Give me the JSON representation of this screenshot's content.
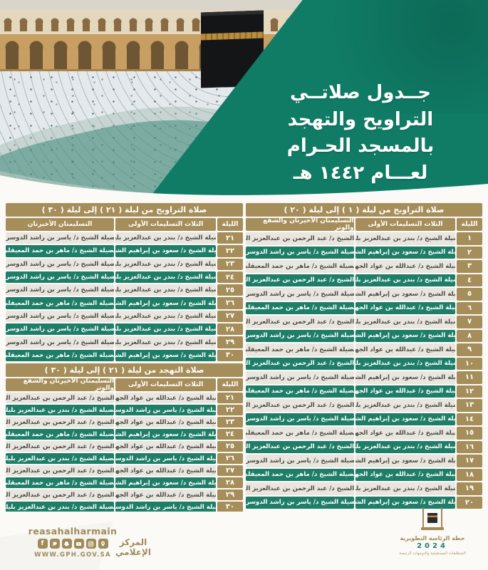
{
  "hero": {
    "title_lines": [
      "جــدول صلاتــي",
      "التراويح والتهجد",
      "بالمسجد الحـرام",
      "لعـــام ١٤٤٢ هـ"
    ]
  },
  "tables": {
    "taraweeh_1_20": {
      "title": "صلاة التراويح من ليلة ( ١ ) إلى ليلة ( ٢٠ )",
      "columns": [
        "الليلة",
        "الثلاث التسليمات الأولى",
        "التسليمتان الأخيرتان والشفع والوتر"
      ],
      "rows": [
        {
          "night": "١",
          "first": "فضيلة الشيخ د/ بندر بن عبدالعزيز بليلة",
          "second": "معالي الشيخ د/ عبد الرحمن بن عبدالعزيز السديس"
        },
        {
          "night": "٢",
          "first": "فضيلة الشيخ د/ سعود بن إبراهيم الشريم",
          "second": "فضيلة الشيخ د/ ياسر بن راشد الدوسري"
        },
        {
          "night": "٣",
          "first": "فضيلة الشيخ د/ عبدالله بن عواد الجهني",
          "second": "فضيلة الشيخ د/ ماهر بن حمد المعيقلي"
        },
        {
          "night": "٤",
          "first": "فضيلة الشيخ د/ بندر بن عبدالعزيز بليلة",
          "second": "معالي الشيخ د/ عبد الرحمن بن عبدالعزيز السديس"
        },
        {
          "night": "٥",
          "first": "فضيلة الشيخ د/ سعود بن إبراهيم الشريم",
          "second": "فضيلة الشيخ د/ ياسر بن راشد الدوسري"
        },
        {
          "night": "٦",
          "first": "فضيلة الشيخ د/ عبدالله بن عواد الجهني",
          "second": "فضيلة الشيخ د/ ماهر بن حمد المعيقلي"
        },
        {
          "night": "٧",
          "first": "فضيلة الشيخ د/ بندر بن عبدالعزيز بليلة",
          "second": "معالي الشيخ د/ عبد الرحمن بن عبدالعزيز السديس"
        },
        {
          "night": "٨",
          "first": "فضيلة الشيخ د/ سعود بن إبراهيم الشريم",
          "second": "فضيلة الشيخ د/ ياسر بن راشد الدوسري"
        },
        {
          "night": "٩",
          "first": "فضيلة الشيخ د/ عبدالله بن عواد الجهني",
          "second": "فضيلة الشيخ د/ ماهر بن حمد المعيقلي"
        },
        {
          "night": "١٠",
          "first": "فضيلة الشيخ د/ بندر بن عبدالعزيز بليلة",
          "second": "معالي الشيخ د/ عبد الرحمن بن عبدالعزيز السديس"
        },
        {
          "night": "١١",
          "first": "فضيلة الشيخ د/ سعود بن إبراهيم الشريم",
          "second": "فضيلة الشيخ د/ ياسر بن راشد الدوسري"
        },
        {
          "night": "١٢",
          "first": "فضيلة الشيخ د/ عبدالله بن عواد الجهني",
          "second": "فضيلة الشيخ د/ ماهر بن حمد المعيقلي"
        },
        {
          "night": "١٣",
          "first": "فضيلة الشيخ د/ بندر بن عبدالعزيز بليلة",
          "second": "معالي الشيخ د/ عبد الرحمن بن عبدالعزيز السديس"
        },
        {
          "night": "١٤",
          "first": "فضيلة الشيخ د/ سعود بن إبراهيم الشريم",
          "second": "فضيلة الشيخ د/ ياسر بن راشد الدوسري"
        },
        {
          "night": "١٥",
          "first": "فضيلة الشيخ د/ عبدالله بن عواد الجهني",
          "second": "فضيلة الشيخ د/ ماهر بن حمد المعيقلي"
        },
        {
          "night": "١٦",
          "first": "فضيلة الشيخ د/ بندر بن عبدالعزيز بليلة",
          "second": "معالي الشيخ د/ عبد الرحمن بن عبدالعزيز السديس"
        },
        {
          "night": "١٧",
          "first": "فضيلة الشيخ د/ سعود بن إبراهيم الشريم",
          "second": "فضيلة الشيخ د/ ياسر بن راشد الدوسري"
        },
        {
          "night": "١٨",
          "first": "فضيلة الشيخ د/ عبدالله بن عواد الجهني",
          "second": "فضيلة الشيخ د/ ماهر بن حمد المعيقلي"
        },
        {
          "night": "١٩",
          "first": "فضيلة الشيخ د/ بندر بن عبدالعزيز بليلة",
          "second": "معالي الشيخ د/ عبد الرحمن بن عبدالعزيز السديس"
        },
        {
          "night": "٢٠",
          "first": "فضيلة الشيخ د/ سعود بن إبراهيم الشريم",
          "second": "فضيلة الشيخ د/ ياسر بن راشد الدوسري"
        }
      ]
    },
    "taraweeh_21_30": {
      "title": "صلاة التراويح من ليلة ( ٢١ ) إلى ليلة ( ٣٠ )",
      "columns": [
        "الليلة",
        "الثلاث التسليمات الأولى",
        "التسليمتان الأخيرتان"
      ],
      "rows": [
        {
          "night": "٢١",
          "first": "فضيلة الشيخ د/ بندر بن عبدالعزيز بليلة",
          "second": "فضيلة الشيخ د/ ياسر بن راشد الدوسري"
        },
        {
          "night": "٢٢",
          "first": "فضيلة الشيخ د/ سعود بن إبراهيم الشريم",
          "second": "فضيلة الشيخ د/ ماهر بن حمد المعيقلي"
        },
        {
          "night": "٢٣",
          "first": "فضيلة الشيخ د/ بندر بن عبدالعزيز بليلة",
          "second": "فضيلة الشيخ د/ ياسر بن راشد الدوسري"
        },
        {
          "night": "٢٤",
          "first": "فضيلة الشيخ د/ بندر بن عبدالعزيز بليلة",
          "second": "فضيلة الشيخ د/ ياسر بن راشد الدوسري"
        },
        {
          "night": "٢٥",
          "first": "فضيلة الشيخ د/ بندر بن عبدالعزيز بليلة",
          "second": "فضيلة الشيخ د/ ياسر بن راشد الدوسري"
        },
        {
          "night": "٢٦",
          "first": "فضيلة الشيخ د/ سعود بن إبراهيم الشريم",
          "second": "فضيلة الشيخ د/ ماهر بن حمد المعيقلي"
        },
        {
          "night": "٢٧",
          "first": "فضيلة الشيخ د/ بندر بن عبدالعزيز بليلة",
          "second": "فضيلة الشيخ د/ ياسر بن راشد الدوسري"
        },
        {
          "night": "٢٨",
          "first": "فضيلة الشيخ د/ بندر بن عبدالعزيز بليلة",
          "second": "فضيلة الشيخ د/ ياسر بن راشد الدوسري"
        },
        {
          "night": "٢٩",
          "first": "فضيلة الشيخ د/ بندر بن عبدالعزيز بليلة",
          "second": "فضيلة الشيخ د/ ياسر بن راشد الدوسري"
        },
        {
          "night": "٣٠",
          "first": "فضيلة الشيخ د/ سعود بن إبراهيم الشريم",
          "second": "فضيلة الشيخ د/ ماهر بن حمد المعيقلي"
        }
      ]
    },
    "tahajjud_21_30": {
      "title": "صلاة التهجد من ليلة ( ٢١ ) إلى ليلة ( ٣٠ )",
      "columns": [
        "الليلة",
        "الثلاث التسليمات الأولى",
        "التسليمتان الأخيرتان والشفع والوتر"
      ],
      "rows": [
        {
          "night": "٢١",
          "first": "فضيلة الشيخ د/ عبدالله بن عواد الجهني",
          "second": "معالي الشيخ د/ عبد الرحمن بن عبدالعزيز السديس"
        },
        {
          "night": "٢٢",
          "first": "فضيلة الشيخ د/ ياسر بن راشد الدوسري",
          "second": "فضيلة الشيخ د/ بندر بن عبدالعزيز بليلة"
        },
        {
          "night": "٢٣",
          "first": "فضيلة الشيخ د/ عبدالله بن عواد الجهني",
          "second": "معالي الشيخ د/ عبد الرحمن بن عبدالعزيز السديس"
        },
        {
          "night": "٢٤",
          "first": "فضيلة الشيخ د/ سعود بن إبراهيم الشريم",
          "second": "فضيلة الشيخ د/ ماهر بن حمد المعيقلي"
        },
        {
          "night": "٢٥",
          "first": "فضيلة الشيخ د/ عبدالله بن عواد الجهني",
          "second": "معالي الشيخ د/ عبد الرحمن بن عبدالعزيز السديس"
        },
        {
          "night": "٢٦",
          "first": "فضيلة الشيخ د/ ياسر بن راشد الدوسري",
          "second": "فضيلة الشيخ د/ بندر بن عبدالعزيز بليلة"
        },
        {
          "night": "٢٧",
          "first": "فضيلة الشيخ د/ عبدالله بن عواد الجهني",
          "second": "معالي الشيخ د/ عبد الرحمن بن عبدالعزيز السديس"
        },
        {
          "night": "٢٨",
          "first": "فضيلة الشيخ د/ سعود بن إبراهيم الشريم",
          "second": "فضيلة الشيخ د/ ماهر بن حمد المعيقلي"
        },
        {
          "night": "٢٩",
          "first": "فضيلة الشيخ د/ عبدالله بن عواد الجهني",
          "second": "معالي الشيخ د/ عبد الرحمن بن عبدالعزيز السديس"
        },
        {
          "night": "٣٠",
          "first": "فضيلة الشيخ د/ ياسر بن راشد الدوسري",
          "second": "فضيلة الشيخ د/ بندر بن عبدالعزيز بليلة"
        }
      ]
    }
  },
  "footer": {
    "media_center": "المركز الإعلامي",
    "social_handle": "reasahalharmain",
    "website": "WWW.GPH.GOV.SA",
    "social_icons": [
      "facebook-icon",
      "twitter-icon",
      "snapchat-icon",
      "youtube-icon",
      "instagram-icon",
      "location-icon"
    ],
    "logo": {
      "title": "خطة الرئاسة التطويرية",
      "year": "2024",
      "tagline": "المنطلقات المستقبلية والتوجهات الرئيسة"
    }
  },
  "colors": {
    "gold": "#a68e5a",
    "green_row": "#1f7e68",
    "ribbon_green": "#107c66",
    "light_row": "#e9e6e0"
  }
}
